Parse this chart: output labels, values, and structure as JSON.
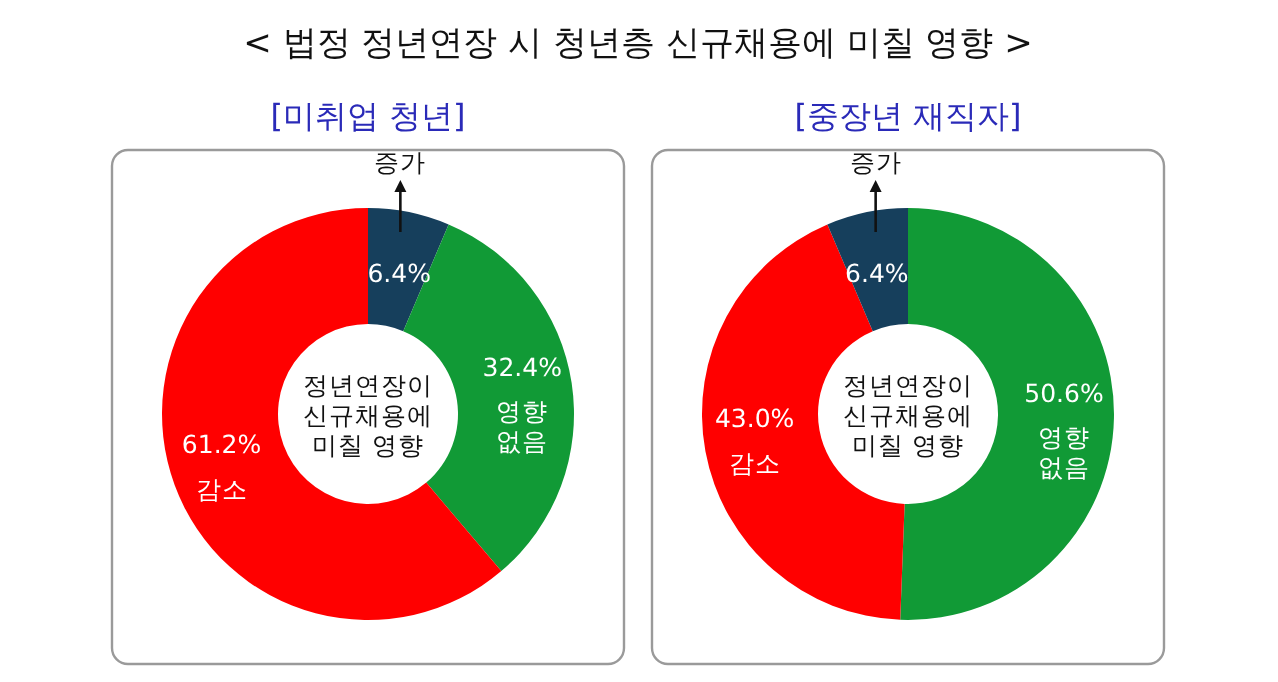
{
  "chart_data": [
    {
      "type": "other",
      "title": "< 법정 정년연장 시 청년층 신규채용에 미칠 영향 >"
    },
    {
      "type": "donut",
      "title": "[미취업 청년]",
      "categories": [
        "증가",
        "영향 없음",
        "감소"
      ],
      "values": [
        6.4,
        32.4,
        61.2
      ],
      "colors": [
        "#163f5c",
        "#119a36",
        "#ff0000"
      ],
      "value_labels": [
        "6.4%",
        "32.4%",
        "61.2%"
      ],
      "annotations": [
        "정년연장이\n신규채용에\n미칠 영향"
      ]
    },
    {
      "type": "donut",
      "title": "[중장년 재직자]",
      "categories": [
        "영향 없음",
        "감소",
        "증가"
      ],
      "values": [
        50.6,
        43.0,
        6.4
      ],
      "colors": [
        "#119a36",
        "#ff0000",
        "#163f5c"
      ],
      "value_labels": [
        "50.6%",
        "43.0%",
        "6.4%"
      ],
      "annotations": [
        "정년연장이\n신규채용에\n미칠 영향"
      ]
    }
  ]
}
